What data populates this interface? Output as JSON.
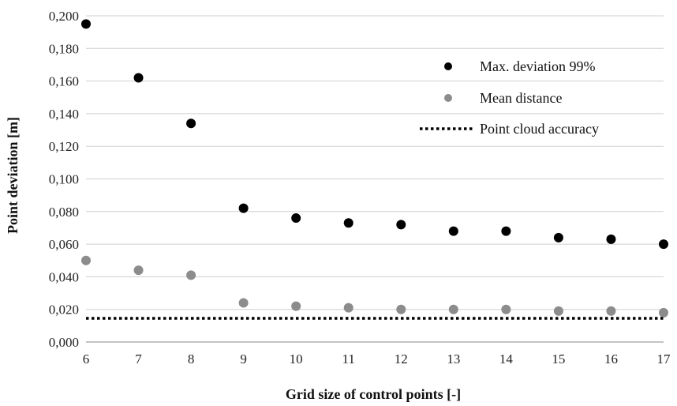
{
  "chart_data": {
    "type": "scatter",
    "title": "",
    "xlabel": "Grid size of control points [-]",
    "ylabel": "Point deviation [m]",
    "xlim": [
      6,
      17
    ],
    "ylim": [
      0,
      0.2
    ],
    "x_ticks": [
      "6",
      "7",
      "8",
      "9",
      "10",
      "11",
      "12",
      "13",
      "14",
      "15",
      "16",
      "17"
    ],
    "y_ticks": [
      "0,000",
      "0,020",
      "0,040",
      "0,060",
      "0,080",
      "0,100",
      "0,120",
      "0,140",
      "0,160",
      "0,180",
      "0,200"
    ],
    "grid": "horizontal",
    "legend_position": "top-right",
    "x": [
      6,
      7,
      8,
      9,
      10,
      11,
      12,
      13,
      14,
      15,
      16,
      17
    ],
    "series": [
      {
        "name": "Max. deviation 99%",
        "kind": "points",
        "color": "#000000",
        "values": [
          0.195,
          0.162,
          0.134,
          0.082,
          0.076,
          0.073,
          0.072,
          0.068,
          0.068,
          0.064,
          0.063,
          0.06
        ]
      },
      {
        "name": "Mean distance",
        "kind": "points",
        "color": "#8c8c8c",
        "values": [
          0.05,
          0.044,
          0.041,
          0.024,
          0.022,
          0.021,
          0.02,
          0.02,
          0.02,
          0.019,
          0.019,
          0.018
        ]
      },
      {
        "name": "Point cloud accuracy",
        "kind": "dotted-line",
        "color": "#000000",
        "values": [
          0.0145,
          0.0145,
          0.0145,
          0.0145,
          0.0145,
          0.0145,
          0.0145,
          0.0145,
          0.0145,
          0.0145,
          0.0145,
          0.0145
        ]
      }
    ]
  }
}
